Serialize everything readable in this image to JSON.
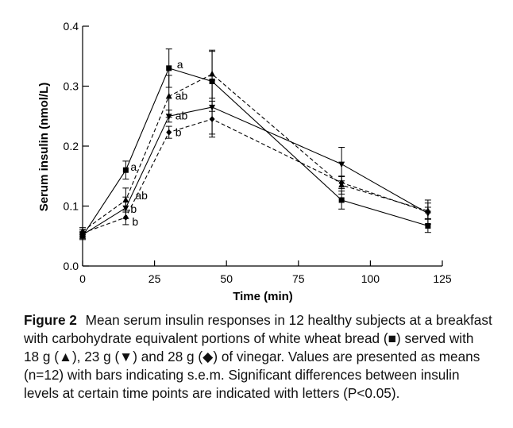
{
  "chart_data": {
    "type": "line",
    "xlabel": "Time (min)",
    "ylabel": "Serum insulin (nmol/L)",
    "xlim": [
      0,
      125
    ],
    "ylim": [
      0,
      0.4
    ],
    "x_ticks": [
      0,
      25,
      50,
      75,
      100,
      125
    ],
    "x_tick_labels": [
      "0",
      "25",
      "50",
      "75",
      "100",
      "125"
    ],
    "y_ticks": [
      0,
      0.1,
      0.2,
      0.3,
      0.4
    ],
    "y_tick_labels": [
      "0.0",
      "0.1",
      "0.2",
      "0.3",
      "0.4"
    ],
    "grid": false,
    "x": [
      0,
      15,
      30,
      45,
      90,
      120
    ],
    "series": [
      {
        "name": "white wheat bread",
        "marker": "square",
        "line": "solid",
        "values": [
          0.05,
          0.16,
          0.33,
          0.308,
          0.11,
          0.067
        ],
        "sem": [
          0.006,
          0.015,
          0.032,
          0.05,
          0.015,
          0.011
        ]
      },
      {
        "name": "18 g vinegar",
        "marker": "triangle-up",
        "line": "dashed",
        "values": [
          0.058,
          0.11,
          0.283,
          0.32,
          0.135,
          0.092
        ],
        "sem": [
          0.006,
          0.02,
          0.035,
          0.04,
          0.015,
          0.013
        ]
      },
      {
        "name": "23 g vinegar",
        "marker": "triangle-down",
        "line": "solid",
        "values": [
          0.052,
          0.097,
          0.25,
          0.265,
          0.17,
          0.088
        ],
        "sem": [
          0.006,
          0.018,
          0.01,
          0.045,
          0.028,
          0.01
        ]
      },
      {
        "name": "28 g vinegar",
        "marker": "diamond",
        "line": "dashed",
        "values": [
          0.055,
          0.081,
          0.223,
          0.245,
          0.139,
          0.09
        ],
        "sem": [
          0.006,
          0.012,
          0.01,
          0.03,
          0.01,
          0.02
        ]
      }
    ],
    "annotations": [
      {
        "text": "a",
        "x": 30,
        "y": 0.33
      },
      {
        "text": "ab",
        "x": 30,
        "y": 0.283
      },
      {
        "text": "ab",
        "x": 30,
        "y": 0.25
      },
      {
        "text": "b",
        "x": 30,
        "y": 0.223
      },
      {
        "text": "a",
        "x": 15,
        "y": 0.16
      },
      {
        "text": "ab",
        "x": 15,
        "y": 0.11
      },
      {
        "text": "b",
        "x": 15,
        "y": 0.097
      },
      {
        "text": "b",
        "x": 15,
        "y": 0.081
      }
    ]
  },
  "caption": {
    "label": "Figure 2",
    "text": "Mean serum insulin responses in 12 healthy subjects at a breakfast with carbohydrate equivalent portions of white wheat bread (■) served with 18 g (▲), 23 g (▼) and 28 g (◆) of vinegar. Values are presented as means (n=12) with bars indicating s.e.m. Significant differences between insulin levels at certain time points are indicated with letters (P<0.05)."
  }
}
